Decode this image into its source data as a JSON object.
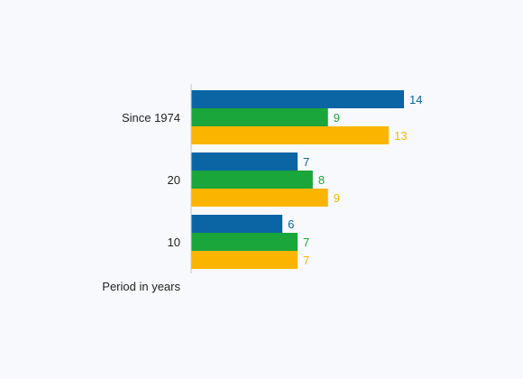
{
  "chart_data": {
    "type": "bar",
    "orientation": "horizontal",
    "categories": [
      "Since 1974",
      "20",
      "10"
    ],
    "series": [
      {
        "values": [
          14,
          7,
          6
        ],
        "color": "#0b64a4"
      },
      {
        "values": [
          9,
          8,
          7
        ],
        "color": "#1aa63a"
      },
      {
        "values": [
          13,
          9,
          7
        ],
        "color": "#fbb500"
      }
    ],
    "xlim": [
      0,
      14
    ],
    "category_axis_label": "Period in years",
    "grid": false,
    "legend": "none"
  }
}
